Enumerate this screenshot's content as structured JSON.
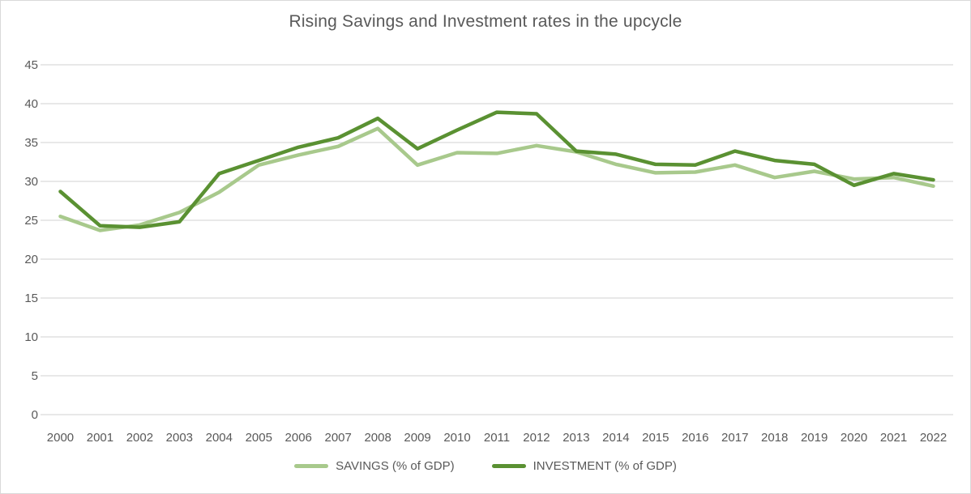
{
  "chart_data": {
    "type": "line",
    "title": "Rising Savings and Investment rates in the upcycle",
    "xlabel": "",
    "ylabel": "",
    "categories": [
      "2000",
      "2001",
      "2002",
      "2003",
      "2004",
      "2005",
      "2006",
      "2007",
      "2008",
      "2009",
      "2010",
      "2011",
      "2012",
      "2013",
      "2014",
      "2015",
      "2016",
      "2017",
      "2018",
      "2019",
      "2020",
      "2021",
      "2022"
    ],
    "series": [
      {
        "name": "SAVINGS (% of GDP)",
        "color": "#a8c98c",
        "values": [
          25.5,
          23.7,
          24.4,
          26.0,
          28.6,
          32.1,
          33.4,
          34.5,
          36.8,
          32.1,
          33.7,
          33.6,
          34.6,
          33.8,
          32.2,
          31.1,
          31.2,
          32.1,
          30.5,
          31.3,
          30.3,
          30.5,
          29.4
        ]
      },
      {
        "name": "INVESTMENT (% of GDP)",
        "color": "#5a9132",
        "values": [
          28.7,
          24.3,
          24.1,
          24.8,
          31.0,
          32.7,
          34.4,
          35.6,
          38.1,
          34.2,
          36.6,
          38.9,
          38.7,
          33.9,
          33.5,
          32.2,
          32.1,
          33.9,
          32.7,
          32.2,
          29.5,
          31.0,
          30.2
        ]
      }
    ],
    "ylim": [
      0,
      45
    ],
    "ytick_step": 5,
    "grid": true,
    "legend_position": "bottom"
  },
  "colors": {
    "title": "#595959",
    "axis_labels": "#595959",
    "gridlines": "#d9d9d9",
    "border": "#d9d9d9",
    "background": "#ffffff"
  }
}
